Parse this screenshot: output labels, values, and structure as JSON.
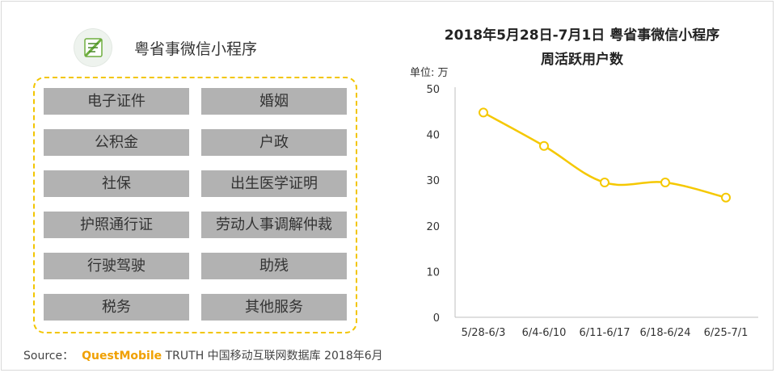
{
  "app": {
    "title": "粤省事微信小程序"
  },
  "features": {
    "left": [
      "电子证件",
      "公积金",
      "社保",
      "护照通行证",
      "行驶驾驶",
      "税务"
    ],
    "right": [
      "婚姻",
      "户政",
      "出生医学证明",
      "劳动人事调解仲裁",
      "助残",
      "其他服务"
    ]
  },
  "chart_data": {
    "type": "line",
    "title_line1": "2018年5月28日-7月1日 粤省事微信小程序",
    "title_line2": "周活跃用户数",
    "unit_label": "单位: 万",
    "categories": [
      "5/28-6/3",
      "6/4-6/10",
      "6/11-6/17",
      "6/18-6/24",
      "6/25-7/1"
    ],
    "values": [
      44.8,
      37.5,
      29.5,
      29.5,
      26.2
    ],
    "ylim": [
      0,
      50
    ],
    "yticks": [
      0,
      10,
      20,
      30,
      40,
      50
    ],
    "grid": false,
    "legend": "none",
    "series_color": "#f5c800"
  },
  "source": {
    "label": "Source：",
    "brand": "QuestMobile",
    "text": "TRUTH 中国移动互联网数据库 2018年6月"
  }
}
